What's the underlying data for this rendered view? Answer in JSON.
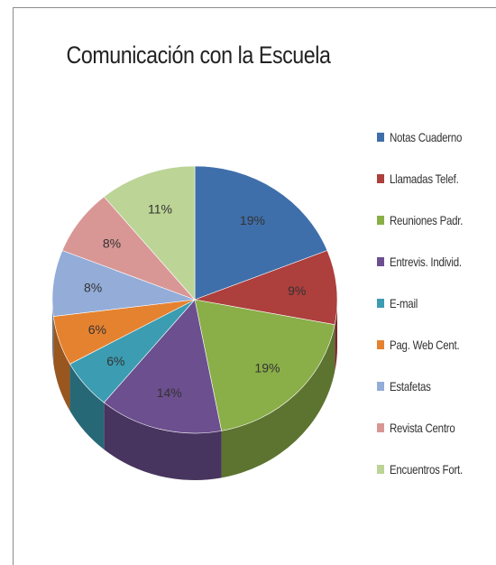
{
  "chart_data": {
    "type": "pie",
    "title": "Comunicación con la Escuela",
    "categories": [
      "Notas Cuaderno",
      "Llamadas Telef.",
      "Reuniones Padr.",
      "Entrevis. Individ.",
      "E-mail",
      "Pag. Web Cent.",
      "Estafetas",
      "Revista Centro",
      "Encuentros Fort."
    ],
    "values": [
      19,
      9,
      19,
      14,
      6,
      6,
      8,
      8,
      11
    ],
    "labels": [
      "19%",
      "9%",
      "19%",
      "14%",
      "6%",
      "6%",
      "8%",
      "8%",
      "11%"
    ],
    "colors": [
      "#3f6faa",
      "#ad3f3d",
      "#8aae48",
      "#6c4f8f",
      "#3b9cb2",
      "#e5822f",
      "#93acd8",
      "#d89795",
      "#bcd496"
    ],
    "side_colors": [
      "#2a4a73",
      "#742a29",
      "#5c7430",
      "#48355f",
      "#276877",
      "#99561f",
      "#627390",
      "#906563",
      "#7d8d64"
    ],
    "style": "3d",
    "legend_position": "right"
  }
}
